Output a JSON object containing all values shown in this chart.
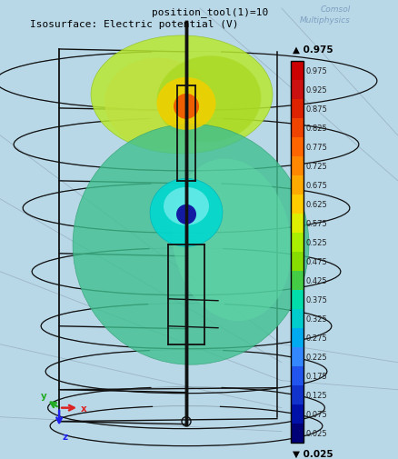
{
  "title_line1": "    position_tool(1)=10",
  "title_line2": "Isosurface: Electric potential (V)",
  "bg_color": "#b8d8e8",
  "colorbar_values": [
    0.975,
    0.925,
    0.875,
    0.825,
    0.775,
    0.725,
    0.675,
    0.625,
    0.575,
    0.525,
    0.475,
    0.425,
    0.375,
    0.325,
    0.275,
    0.225,
    0.175,
    0.125,
    0.075,
    0.025
  ],
  "colorbar_colors": [
    "#cc0000",
    "#cc1111",
    "#dd2200",
    "#ee4400",
    "#ff6600",
    "#ff8800",
    "#ffaa00",
    "#ffcc00",
    "#ddee00",
    "#aaee00",
    "#88dd00",
    "#44cc44",
    "#00ddaa",
    "#00cccc",
    "#00aaee",
    "#3388ff",
    "#2255ee",
    "#1133cc",
    "#0011aa",
    "#000077"
  ],
  "max_label": "0.975",
  "min_label": "0.025",
  "comsol_line1": "Comsol",
  "comsol_line2": "Multiphysics",
  "fig_width": 4.38,
  "fig_height": 5.06,
  "dpi": 100
}
